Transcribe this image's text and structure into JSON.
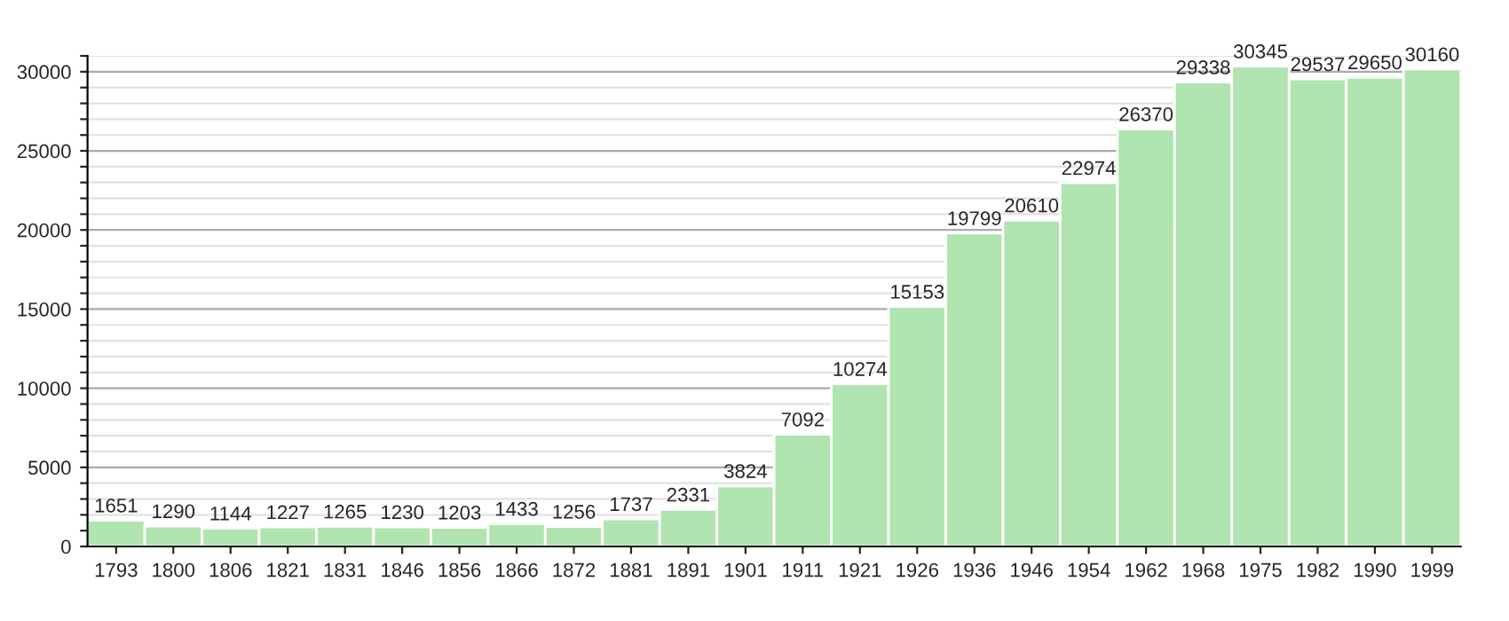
{
  "chart_data": {
    "type": "bar",
    "categories": [
      "1793",
      "1800",
      "1806",
      "1821",
      "1831",
      "1846",
      "1856",
      "1866",
      "1872",
      "1881",
      "1891",
      "1901",
      "1911",
      "1921",
      "1926",
      "1936",
      "1946",
      "1954",
      "1962",
      "1968",
      "1975",
      "1982",
      "1990",
      "1999"
    ],
    "values": [
      1651,
      1290,
      1144,
      1227,
      1265,
      1230,
      1203,
      1433,
      1256,
      1737,
      2331,
      3824,
      7092,
      10274,
      15153,
      19799,
      20610,
      22974,
      26370,
      29338,
      30345,
      29537,
      29650,
      30160
    ],
    "color": "#b0e4b0",
    "data_labels": true,
    "ylim": [
      0,
      31000
    ],
    "yticks": [
      0,
      {
        "value": 1000,
        "label": null
      },
      {
        "value": 2000,
        "label": null
      },
      {
        "value": 3000,
        "label": null
      },
      {
        "value": 4000,
        "label": null
      },
      5000,
      {
        "value": 6000,
        "label": null
      },
      {
        "value": 7000,
        "label": null
      },
      {
        "value": 8000,
        "label": null
      },
      {
        "value": 9000,
        "label": null
      },
      10000,
      {
        "value": 11000,
        "label": null
      },
      {
        "value": 12000,
        "label": null
      },
      {
        "value": 13000,
        "label": null
      },
      {
        "value": 14000,
        "label": null
      },
      15000,
      {
        "value": 16000,
        "label": null
      },
      {
        "value": 17000,
        "label": null
      },
      {
        "value": 18000,
        "label": null
      },
      {
        "value": 19000,
        "label": null
      },
      20000,
      {
        "value": 21000,
        "label": null
      },
      {
        "value": 22000,
        "label": null
      },
      {
        "value": 23000,
        "label": null
      },
      {
        "value": 24000,
        "label": null
      },
      25000,
      {
        "value": 26000,
        "label": null
      },
      {
        "value": 27000,
        "label": null
      },
      {
        "value": 28000,
        "label": null
      },
      {
        "value": 29000,
        "label": null
      },
      30000,
      {
        "value": 31000,
        "label": null
      }
    ],
    "grid": "y"
  }
}
